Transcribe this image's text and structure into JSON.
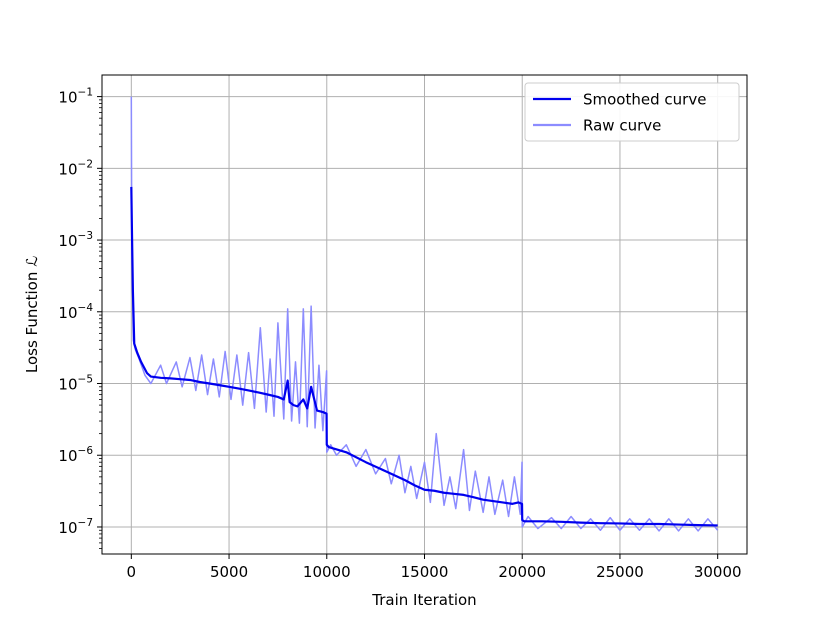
{
  "chart_data": {
    "type": "line",
    "xlabel": "Train Iteration",
    "ylabel": "Loss Function",
    "ylabel_symbol": "ℒ",
    "xlim": [
      -1500,
      31500
    ],
    "ylim": [
      4.2e-08,
      0.2
    ],
    "yscale": "log",
    "grid": true,
    "legend_position": "top-right",
    "x_ticks": [
      {
        "value": 0,
        "label": "0"
      },
      {
        "value": 5000,
        "label": "5000"
      },
      {
        "value": 10000,
        "label": "10000"
      },
      {
        "value": 15000,
        "label": "15000"
      },
      {
        "value": 20000,
        "label": "20000"
      },
      {
        "value": 25000,
        "label": "25000"
      },
      {
        "value": 30000,
        "label": "30000"
      }
    ],
    "y_ticks": [
      {
        "value": 1e-07,
        "base": "10",
        "exp": "−7"
      },
      {
        "value": 1e-06,
        "base": "10",
        "exp": "−6"
      },
      {
        "value": 1e-05,
        "base": "10",
        "exp": "−5"
      },
      {
        "value": 0.0001,
        "base": "10",
        "exp": "−4"
      },
      {
        "value": 0.001,
        "base": "10",
        "exp": "−3"
      },
      {
        "value": 0.01,
        "base": "10",
        "exp": "−2"
      },
      {
        "value": 0.1,
        "base": "10",
        "exp": "−1"
      }
    ],
    "series": [
      {
        "name": "Smoothed curve",
        "color": "#0000ee",
        "x": [
          0,
          30,
          80,
          150,
          300,
          500,
          800,
          1000,
          1500,
          2000,
          2500,
          3000,
          3500,
          4000,
          4500,
          5000,
          5500,
          6000,
          6500,
          7000,
          7500,
          7800,
          8000,
          8100,
          8300,
          8500,
          8800,
          9000,
          9200,
          9500,
          9800,
          9990,
          10000,
          10100,
          11000,
          12000,
          13000,
          14000,
          14500,
          15000,
          15500,
          16000,
          16500,
          17000,
          17500,
          18000,
          18500,
          19000,
          19500,
          19800,
          19990,
          20000,
          20100,
          21000,
          22000,
          23000,
          24000,
          25000,
          26000,
          27000,
          28000,
          29000,
          30000
        ],
        "y": [
          0.0055,
          0.0015,
          0.0002,
          3.6e-05,
          2.7e-05,
          2e-05,
          1.4e-05,
          1.25e-05,
          1.2e-05,
          1.18e-05,
          1.15e-05,
          1.12e-05,
          1.05e-05,
          1e-05,
          9.5e-06,
          9e-06,
          8.5e-06,
          8e-06,
          7.5e-06,
          7e-06,
          6.5e-06,
          6e-06,
          1.1e-05,
          5.5e-06,
          5e-06,
          4.8e-06,
          6e-06,
          4.5e-06,
          9e-06,
          4.2e-06,
          4e-06,
          3.8e-06,
          1.4e-06,
          1.3e-06,
          1.1e-06,
          8e-07,
          6e-07,
          4.5e-07,
          3.8e-07,
          3.3e-07,
          3.2e-07,
          3e-07,
          2.9e-07,
          2.8e-07,
          2.6e-07,
          2.4e-07,
          2.3e-07,
          2.2e-07,
          2.1e-07,
          2.2e-07,
          2.1e-07,
          1.25e-07,
          1.2e-07,
          1.2e-07,
          1.18e-07,
          1.15e-07,
          1.13e-07,
          1.12e-07,
          1.1e-07,
          1.1e-07,
          1.08e-07,
          1.06e-07,
          1.05e-07
        ]
      },
      {
        "name": "Raw curve",
        "color": "#8c8cff",
        "x": [
          0,
          20,
          40,
          100,
          200,
          400,
          700,
          1000,
          1500,
          1800,
          2300,
          2600,
          3000,
          3300,
          3600,
          3900,
          4200,
          4500,
          4800,
          5100,
          5400,
          5700,
          6000,
          6300,
          6600,
          6900,
          7100,
          7300,
          7500,
          7800,
          8000,
          8200,
          8400,
          8600,
          8800,
          9000,
          9200,
          9400,
          9600,
          9800,
          9990,
          10000,
          10200,
          10500,
          11000,
          11500,
          12000,
          12500,
          13000,
          13300,
          13700,
          14000,
          14300,
          14600,
          15000,
          15300,
          15600,
          16000,
          16300,
          16600,
          17000,
          17300,
          17600,
          18000,
          18300,
          18600,
          19000,
          19300,
          19600,
          19900,
          19990,
          20000,
          20300,
          20800,
          21500,
          22000,
          22500,
          23000,
          23500,
          24000,
          24500,
          25000,
          25500,
          26000,
          26500,
          27000,
          27500,
          28000,
          28500,
          29000,
          29500,
          30000
        ],
        "y": [
          0.1,
          0.002,
          0.0005,
          4e-05,
          3e-05,
          2.2e-05,
          1.3e-05,
          1e-05,
          1.8e-05,
          1e-05,
          2e-05,
          9e-06,
          2.3e-05,
          8e-06,
          2.5e-05,
          7e-06,
          2.2e-05,
          6.5e-06,
          2.8e-05,
          6e-06,
          2.5e-05,
          5e-06,
          2.7e-05,
          4.5e-06,
          6e-05,
          4e-06,
          2.2e-05,
          3.5e-06,
          7e-05,
          3.2e-06,
          0.00011,
          3e-06,
          2e-05,
          2.8e-06,
          0.00011,
          2.5e-06,
          0.00012,
          2.4e-06,
          1.8e-05,
          2.2e-06,
          1.5e-05,
          1.1e-06,
          1.4e-06,
          1e-06,
          1.4e-06,
          7e-07,
          1.2e-06,
          5.5e-07,
          9e-07,
          4e-07,
          1e-06,
          3e-07,
          7e-07,
          2.5e-07,
          8e-07,
          2.2e-07,
          2e-06,
          2e-07,
          5e-07,
          1.8e-07,
          1.2e-06,
          1.7e-07,
          6e-07,
          1.6e-07,
          5e-07,
          1.5e-07,
          4.5e-07,
          1.4e-07,
          5e-07,
          1.5e-07,
          8e-07,
          1e-07,
          1.4e-07,
          9.5e-08,
          1.35e-07,
          9.5e-08,
          1.4e-07,
          9.5e-08,
          1.3e-07,
          9e-08,
          1.35e-07,
          9e-08,
          1.3e-07,
          9e-08,
          1.3e-07,
          8.8e-08,
          1.3e-07,
          8.8e-08,
          1.3e-07,
          8.8e-08,
          1.3e-07,
          9e-08
        ]
      }
    ]
  }
}
